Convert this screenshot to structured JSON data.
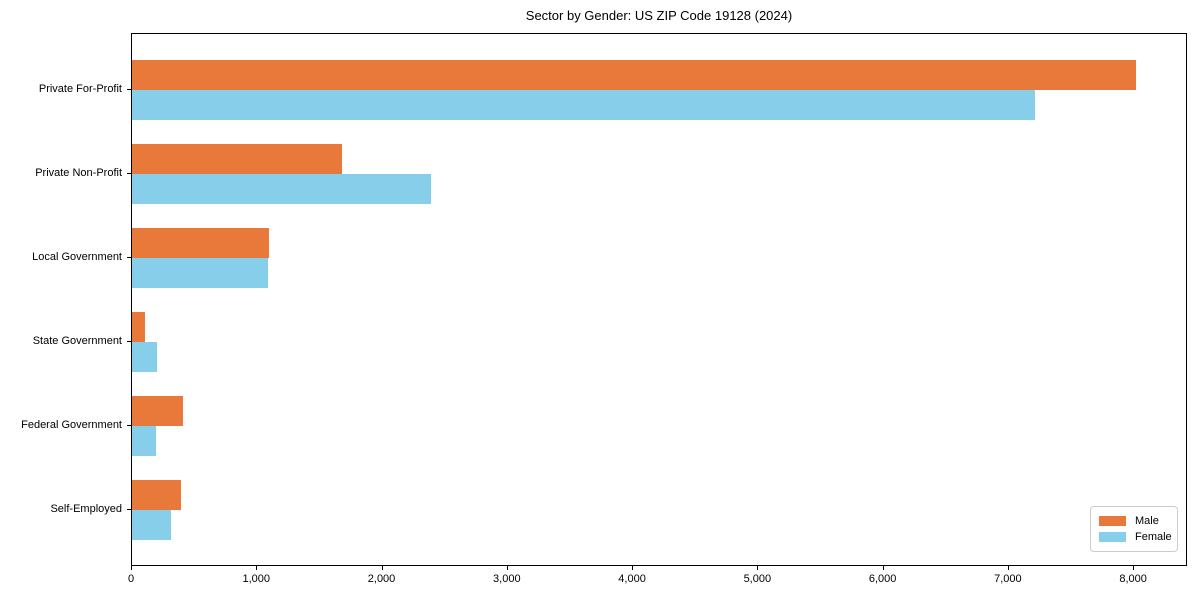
{
  "chart_data": {
    "type": "bar",
    "orientation": "horizontal",
    "title": "Sector by Gender: US ZIP Code 19128 (2024)",
    "categories": [
      "Private For-Profit",
      "Private Non-Profit",
      "Local Government",
      "State Government",
      "Federal Government",
      "Self-Employed"
    ],
    "series": [
      {
        "name": "Male",
        "color": "#e8793a",
        "values": [
          8030,
          1680,
          1095,
          105,
          410,
          390
        ]
      },
      {
        "name": "Female",
        "color": "#87ceeb",
        "values": [
          7220,
          2390,
          1085,
          200,
          195,
          310
        ]
      }
    ],
    "xlabel": "",
    "ylabel": "",
    "xlim": [
      0,
      8430
    ],
    "x_ticks": [
      {
        "value": 0,
        "label": "0"
      },
      {
        "value": 1000,
        "label": "1,000"
      },
      {
        "value": 2000,
        "label": "2,000"
      },
      {
        "value": 3000,
        "label": "3,000"
      },
      {
        "value": 4000,
        "label": "4,000"
      },
      {
        "value": 5000,
        "label": "5,000"
      },
      {
        "value": 6000,
        "label": "6,000"
      },
      {
        "value": 7000,
        "label": "7,000"
      },
      {
        "value": 8000,
        "label": "8,000"
      }
    ],
    "grid": false,
    "legend": {
      "position": "lower right",
      "entries": [
        "Male",
        "Female"
      ]
    }
  }
}
